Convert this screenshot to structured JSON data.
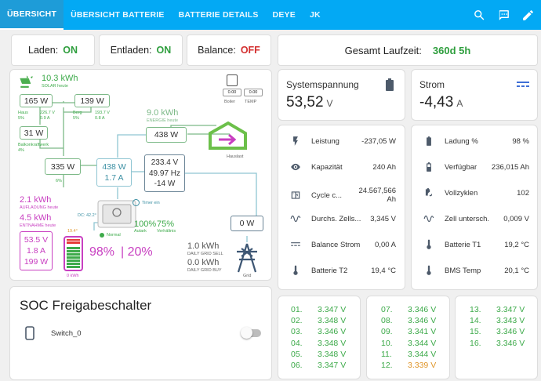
{
  "nav": {
    "tabs": [
      "ÜBERSICHT",
      "ÜBERSICHT BATTERIE",
      "BATTERIE DETAILS",
      "DEYE",
      "JK"
    ]
  },
  "status": {
    "laden_label": "Laden:",
    "laden_value": "ON",
    "entladen_label": "Entladen:",
    "entladen_value": "ON",
    "balance_label": "Balance:",
    "balance_value": "OFF",
    "laufzeit_label": "Gesamt Laufzeit:",
    "laufzeit_value": "360d 5h"
  },
  "flow": {
    "solar_kwh": "10.3 kWh",
    "solar_label": "SOLAR heute",
    "haus_w": "165 W",
    "haus_label": "Haus",
    "haus_pct": "5%",
    "haus_v": "226.7 V",
    "haus_a": "0.9 A",
    "berg_w": "139 W",
    "berg_label": "Berg",
    "berg_pct": "5%",
    "berg_v": "193.7 V",
    "berg_a": "0.8 A",
    "balkon_w": "31 W",
    "balkon_label": "Balkonkraftwerk",
    "balkon_pct": "4%",
    "pv_total_w": "335 W",
    "pv_total_pct": "6%",
    "energie_kwh": "9.0 kWh",
    "energie_label": "ENERGIE heute",
    "load_w": "438 W",
    "hauslast_label": "Hauslast",
    "boiler_label": "Boiler",
    "boiler_val": "0.00",
    "temp_label": "TEMP",
    "temp_val": "0.00",
    "inv_w": "438 W",
    "inv_a": "1.7 A",
    "grid_v": "233.4 V",
    "grid_hz": "49.97 Hz",
    "grid_w2": "-14 W",
    "timer_label": "Timer ein",
    "aufladung_kwh": "2.1 kWh",
    "aufladung_label": "AUFLADUNG heute",
    "entnahme_kwh": "4.5 kWh",
    "entnahme_label": "ENTNAHME heute",
    "dc_temp": "DC: 42.2°",
    "autark_pct": "100%",
    "autark_label": "Autark",
    "verh_pct": "75%",
    "verh_label": "Verhältnis",
    "normal_label": "Normal",
    "bat_v": "53.5 V",
    "bat_a": "1.8 A",
    "bat_w": "199 W",
    "bat_temp": "19.4°",
    "bat_kwh": "0 kWh",
    "soc_pct": "98%",
    "soc2_pct": "| 20%",
    "grid_w": "0 W",
    "grid_label": "Grid",
    "sell_kwh": "1.0 kWh",
    "sell_label": "DAILY GRID SELL",
    "buy_kwh": "0.0 kWh",
    "buy_label": "DAILY GRID BUY",
    "battery_fill_fraction": 0.98
  },
  "soc_card": {
    "title": "SOC Freigabeschalter",
    "switch_label": "Switch_0"
  },
  "spannung": {
    "label": "Systemspannung",
    "value": "53,52",
    "unit": "V"
  },
  "strom": {
    "label": "Strom",
    "value": "-4,43",
    "unit": "A"
  },
  "details_left": [
    {
      "icon": "flash-icon",
      "label": "Leistung",
      "value": "-237,05 W"
    },
    {
      "icon": "eye-icon",
      "label": "Kapazität",
      "value": "240 Ah"
    },
    {
      "icon": "counter-icon",
      "label": "Cycle c...",
      "value": "24.567,566 Ah"
    },
    {
      "icon": "sine-wave-icon",
      "label": "Durchs. Zells...",
      "value": "3,345 V"
    },
    {
      "icon": "current-dc-icon",
      "label": "Balance Strom",
      "value": "0,00 A"
    },
    {
      "icon": "thermometer-icon",
      "label": "Batterie T2",
      "value": "19,4 °C"
    }
  ],
  "details_right": [
    {
      "icon": "battery-icon",
      "label": "Ladung %",
      "value": "98 %"
    },
    {
      "icon": "battery-medium-icon",
      "label": "Verfügbar",
      "value": "236,015 Ah"
    },
    {
      "icon": "battery-sync-icon",
      "label": "Vollzyklen",
      "value": "102"
    },
    {
      "icon": "sine-wave-icon",
      "label": "Zell untersch.",
      "value": "0,009 V"
    },
    {
      "icon": "thermometer-icon",
      "label": "Batterie T1",
      "value": "19,2 °C"
    },
    {
      "icon": "thermometer-icon",
      "label": "BMS Temp",
      "value": "20,1 °C"
    }
  ],
  "cells_a": [
    {
      "n": "01.",
      "v": "3.347 V"
    },
    {
      "n": "02.",
      "v": "3.348 V"
    },
    {
      "n": "03.",
      "v": "3.346 V"
    },
    {
      "n": "04.",
      "v": "3.348 V"
    },
    {
      "n": "05.",
      "v": "3.348 V"
    },
    {
      "n": "06.",
      "v": "3.347 V"
    }
  ],
  "cells_b": [
    {
      "n": "07.",
      "v": "3.346 V"
    },
    {
      "n": "08.",
      "v": "3.346 V"
    },
    {
      "n": "09.",
      "v": "3.341 V"
    },
    {
      "n": "10.",
      "v": "3.344 V"
    },
    {
      "n": "11.",
      "v": "3.344 V"
    },
    {
      "n": "12.",
      "v": "3.339 V",
      "low": true
    }
  ],
  "cells_c": [
    {
      "n": "13.",
      "v": "3.347 V"
    },
    {
      "n": "14.",
      "v": "3.343 V"
    },
    {
      "n": "15.",
      "v": "3.346 V"
    },
    {
      "n": "16.",
      "v": "3.346 V"
    }
  ],
  "colors": {
    "accent": "#03a9f4",
    "green": "#3daa4a",
    "purple": "#c83fc1",
    "orange": "#e0962b",
    "red": "#d32f2f"
  }
}
